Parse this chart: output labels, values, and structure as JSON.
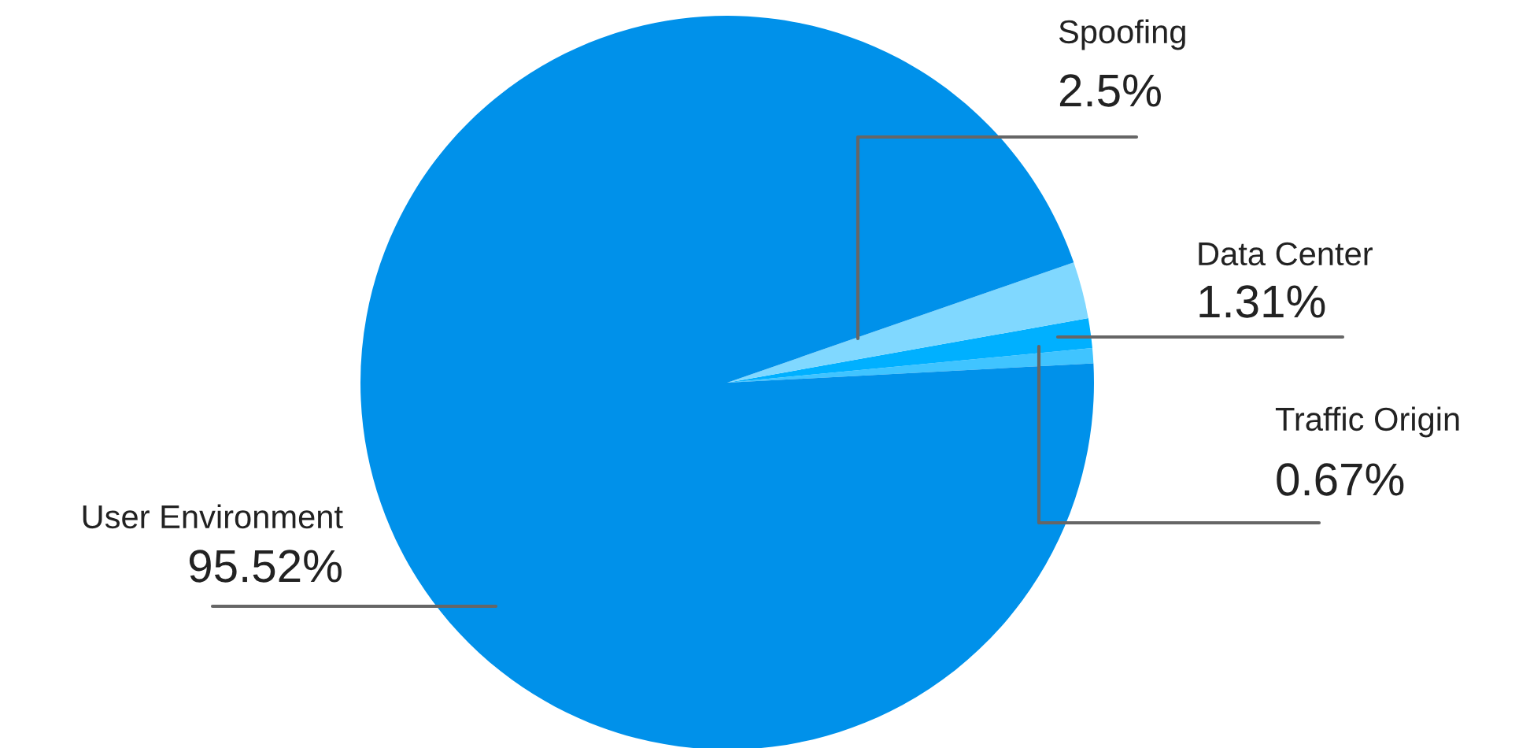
{
  "chart_data": {
    "type": "pie",
    "categories": [
      "Traffic Origin",
      "Data Center",
      "Spoofing",
      "User Environment"
    ],
    "values": [
      0.67,
      1.31,
      2.5,
      95.52
    ],
    "colors": [
      "#40c4ff",
      "#00b0ff",
      "#80d8ff",
      "#0091ea"
    ],
    "value_labels": [
      "0.67%",
      "1.31%",
      "2.5%",
      "95.52%"
    ],
    "legend": false
  }
}
